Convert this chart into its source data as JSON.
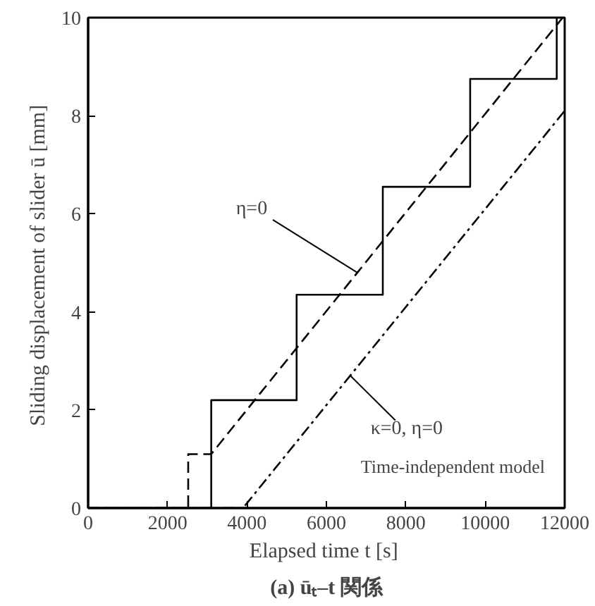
{
  "chart_data": {
    "type": "line",
    "title": "(a) ūₜ–t 関係",
    "xlabel": "Elapsed time  t [s]",
    "ylabel": "Sliding displacement of slider  ū [mm]",
    "xlim": [
      0,
      12000
    ],
    "ylim": [
      0,
      10
    ],
    "xticks": [
      0,
      2000,
      4000,
      6000,
      8000,
      10000,
      12000
    ],
    "yticks": [
      0,
      2,
      4,
      6,
      8,
      10
    ],
    "grid": false,
    "marker": "none",
    "series": [
      {
        "color": "#000000",
        "line_style": "solid",
        "x": [
          0,
          3100,
          3100,
          5250,
          5250,
          7420,
          7420,
          9620,
          9620,
          11800,
          11800
        ],
        "values": [
          0,
          0,
          2.2,
          2.2,
          4.35,
          4.35,
          6.55,
          6.55,
          8.75,
          8.75,
          10
        ]
      },
      {
        "color": "#000000",
        "line_style": "dashed",
        "x": [
          0,
          2520,
          2520,
          3100,
          11950
        ],
        "values": [
          0,
          0,
          1.1,
          1.1,
          10
        ]
      },
      {
        "color": "#000000",
        "line_style": "dashdot",
        "x": [
          0,
          3900,
          12000
        ],
        "values": [
          0,
          0,
          8.1
        ]
      }
    ],
    "annotations": [
      {
        "text": "η=0",
        "x": 6780,
        "y": 4.8
      },
      {
        "text": "κ=0, η=0",
        "x": 6600,
        "y": 2.7
      },
      "Time-independent model"
    ]
  }
}
